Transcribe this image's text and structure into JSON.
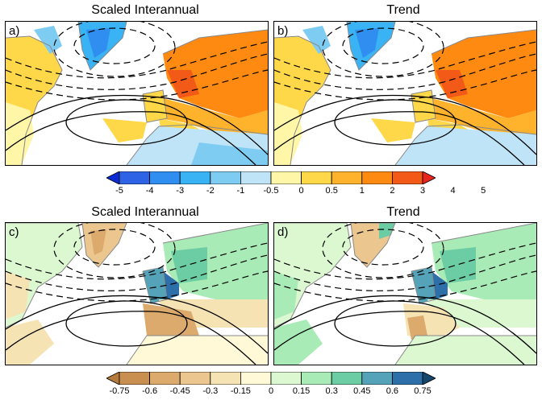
{
  "titles": {
    "top_left": "Scaled Interannual",
    "top_right": "Trend",
    "bottom_left": "Scaled Interannual",
    "bottom_right": "Trend"
  },
  "panel_labels": {
    "a": "a)",
    "b": "b)",
    "c": "c)",
    "d": "d)"
  },
  "colorbar_top": {
    "labels": [
      "-5",
      "-4",
      "-3",
      "-2",
      "-1",
      "-0.5",
      "0",
      "0.5",
      "1",
      "2",
      "3",
      "4",
      "5"
    ],
    "colors": [
      "#0a2bd6",
      "#2f63e6",
      "#2f8ef0",
      "#39b3f4",
      "#7fccf3",
      "#bfe4f7",
      "#fff6a8",
      "#ffd84a",
      "#ffb22b",
      "#ff8a12",
      "#f35a17",
      "#e8251c"
    ]
  },
  "colorbar_bottom": {
    "labels": [
      "-0.75",
      "-0.6",
      "-0.45",
      "-0.3",
      "-0.15",
      "0",
      "0.15",
      "0.3",
      "0.45",
      "0.6",
      "0.75"
    ],
    "colors": [
      "#b67a3c",
      "#c98f50",
      "#dcaa6c",
      "#ebc68e",
      "#f6e3b4",
      "#fff9d8",
      "#dcf8d0",
      "#a9ebb6",
      "#6ccda4",
      "#55a3b9",
      "#2d6fa8",
      "#14466e"
    ]
  }
}
